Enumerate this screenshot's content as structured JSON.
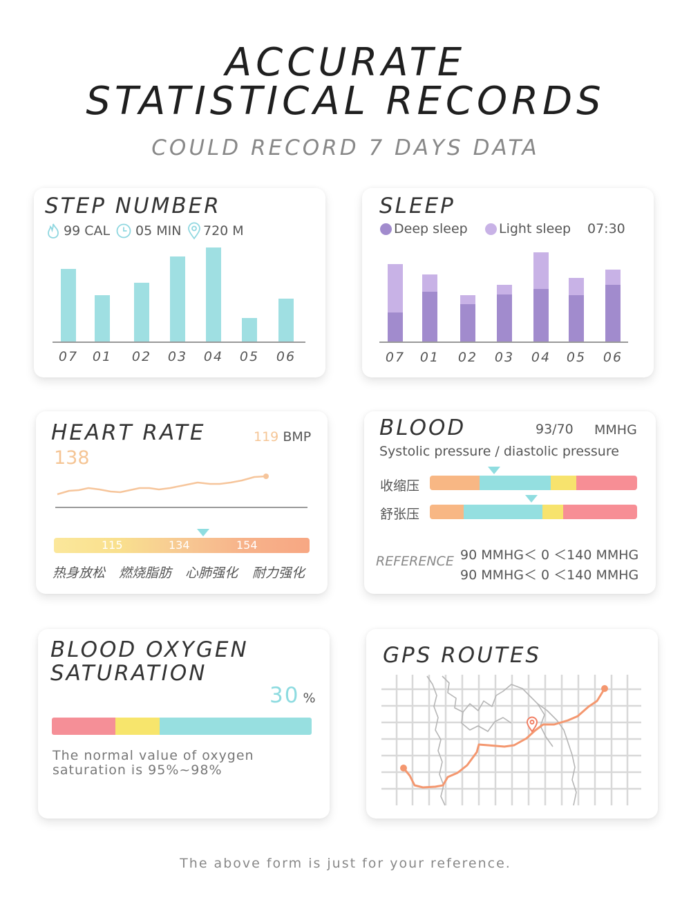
{
  "header": {
    "title_line1": "ACCURATE",
    "title_line2": "STATISTICAL RECORDS",
    "subtitle": "COULD RECORD 7 DAYS DATA"
  },
  "steps": {
    "title": "STEP NUMBER",
    "calories": "99 CAL",
    "minutes": "05 MIN",
    "distance": "720 M",
    "days": [
      "07",
      "01",
      "02",
      "03",
      "04",
      "05",
      "06"
    ],
    "relative_values": [
      105,
      67,
      85,
      123,
      136,
      34,
      62
    ],
    "bar_color": "#9fdfe2"
  },
  "sleep": {
    "title": "SLEEP",
    "legend_deep": "Deep sleep",
    "legend_light": "Light sleep",
    "total": "07:30",
    "days": [
      "07",
      "01",
      "02",
      "03",
      "04",
      "05",
      "06"
    ],
    "deep_values": [
      42,
      72,
      54,
      68,
      76,
      67,
      82
    ],
    "light_values": [
      70,
      25,
      13,
      14,
      53,
      25,
      22
    ],
    "deep_color": "#a18bcd",
    "light_color": "#c8b2e6"
  },
  "heart": {
    "title": "HEART RATE",
    "value": "138",
    "current": "119",
    "unit": "BMP",
    "thresholds": [
      "115",
      "134",
      "154"
    ],
    "zones": [
      "热身放松",
      "燃烧脂肪",
      "心肺强化",
      "耐力强化"
    ]
  },
  "blood": {
    "title": "BLOOD",
    "reading": "93/70",
    "unit": "MMHG",
    "subtitle": "Systolic pressure / diastolic pressure",
    "systolic_label": "收缩压",
    "diastolic_label": "舒张压",
    "reference_label": "REFERENCE",
    "reference_line1": "90 MMHG＜ 0 ＜140 MMHG",
    "reference_line2": "90 MMHG＜ 0 ＜140 MMHG"
  },
  "oxygen": {
    "title_line1": "BLOOD OXYGEN",
    "title_line2": "SATURATION",
    "value": "30",
    "unit": "%",
    "note_line1": "The normal value of oxygen",
    "note_line2": "saturation is 95%~98%"
  },
  "gps": {
    "title": "GPS ROUTES"
  },
  "footer": "The above form is just for your reference."
}
